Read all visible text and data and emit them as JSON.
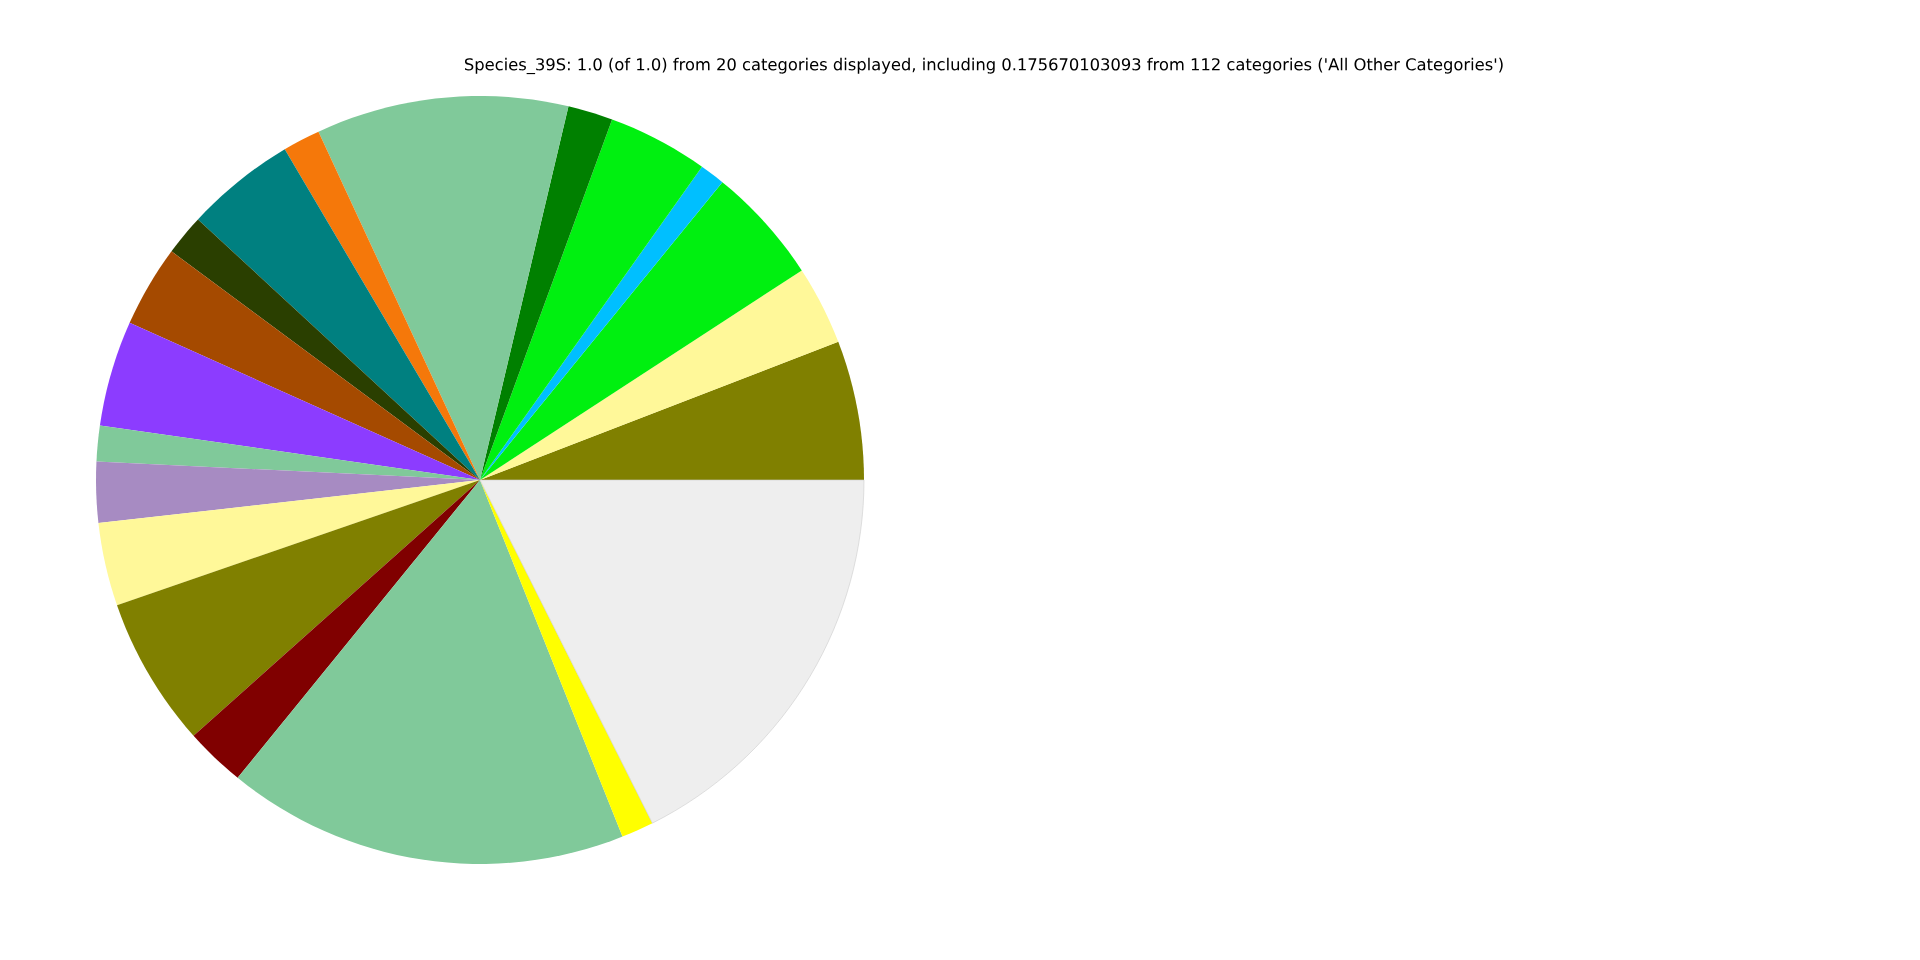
{
  "chart_data": {
    "type": "pie",
    "title": "Species_39S: 1.0 (of 1.0) from 20 categories displayed, including 0.175670103093 from 112 categories ('All Other Categories')",
    "categories": [
      null,
      null,
      null,
      null,
      null,
      null,
      null,
      null,
      null,
      null,
      null,
      null,
      null,
      null,
      null,
      null,
      null,
      null,
      null,
      null
    ],
    "values": [
      5.86,
      3.33,
      4.94,
      1.06,
      4.22,
      1.89,
      10.61,
      1.58,
      4.64,
      1.72,
      3.44,
      4.44,
      1.5,
      2.56,
      3.5,
      6.31,
      2.53,
      16.92,
      1.36,
      17.59
    ],
    "colors": [
      "#808000",
      "#fff899",
      "#00f010",
      "#00bfff",
      "#00f010",
      "#008000",
      "#80c99a",
      "#f5780a",
      "#008080",
      "#2a3f00",
      "#a54a00",
      "#8c3cff",
      "#80c99a",
      "#a78bc2",
      "#fff899",
      "#808000",
      "#800000",
      "#80c99a",
      "#ffff00",
      "#eeeeee"
    ]
  }
}
